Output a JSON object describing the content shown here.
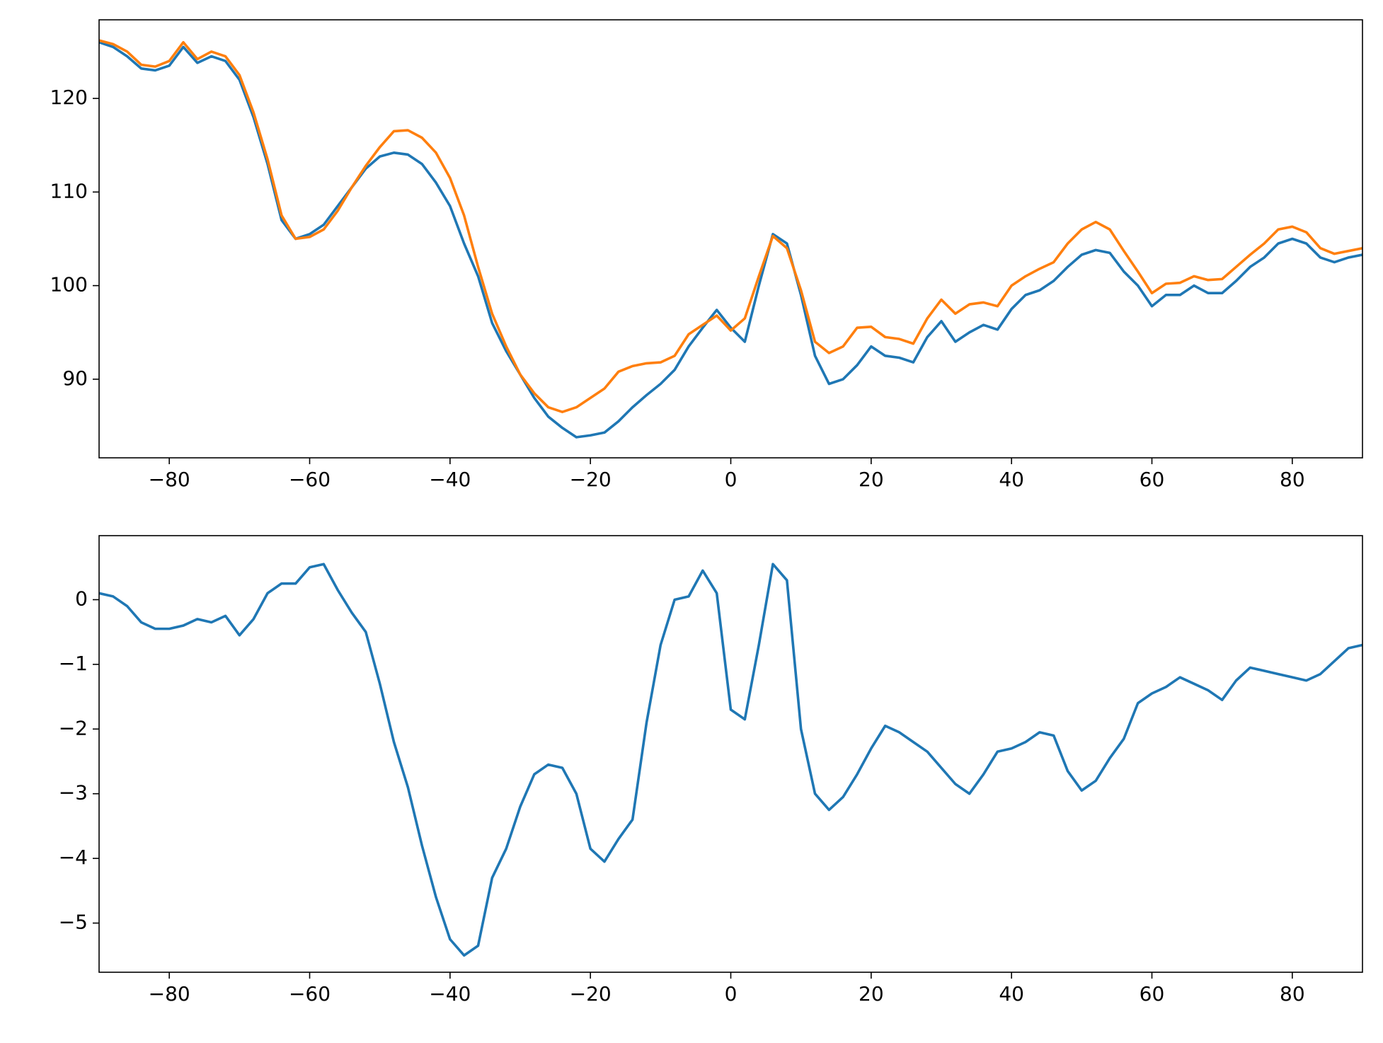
{
  "chart_data": [
    {
      "type": "line",
      "x": [
        -90,
        -88,
        -86,
        -84,
        -82,
        -80,
        -78,
        -76,
        -74,
        -72,
        -70,
        -68,
        -66,
        -64,
        -62,
        -60,
        -58,
        -56,
        -54,
        -52,
        -50,
        -48,
        -46,
        -44,
        -42,
        -40,
        -38,
        -36,
        -34,
        -32,
        -30,
        -28,
        -26,
        -24,
        -22,
        -20,
        -18,
        -16,
        -14,
        -12,
        -10,
        -8,
        -6,
        -4,
        -2,
        0,
        2,
        4,
        6,
        8,
        10,
        12,
        14,
        16,
        18,
        20,
        22,
        24,
        26,
        28,
        30,
        32,
        34,
        36,
        38,
        40,
        42,
        44,
        46,
        48,
        50,
        52,
        54,
        56,
        58,
        60,
        62,
        64,
        66,
        68,
        70,
        72,
        74,
        76,
        78,
        80,
        82,
        84,
        86,
        88,
        90
      ],
      "series": [
        {
          "color": "#1f77b4",
          "values": [
            126,
            125.5,
            124.5,
            123.2,
            123,
            123.5,
            125.5,
            123.8,
            124.5,
            124,
            122,
            118,
            113,
            107,
            105,
            105.5,
            106.5,
            108.5,
            110.5,
            112.5,
            113.8,
            114.2,
            114,
            113,
            111,
            108.5,
            104.5,
            101,
            96,
            93,
            90.5,
            88,
            86,
            84.8,
            83.8,
            84,
            84.3,
            85.5,
            87,
            88.3,
            89.5,
            91,
            93.5,
            95.5,
            97.4,
            95.5,
            94,
            100,
            105.5,
            104.5,
            99,
            92.5,
            89.5,
            90,
            91.5,
            93.5,
            92.5,
            92.3,
            91.8,
            94.5,
            96.2,
            94,
            95,
            95.8,
            95.3,
            97.5,
            99,
            99.5,
            100.5,
            102,
            103.3,
            103.8,
            103.5,
            101.5,
            100,
            97.8,
            99,
            99,
            100,
            99.2,
            99.2,
            100.5,
            102,
            103,
            104.5,
            105,
            104.5,
            103,
            102.5,
            103,
            103.3
          ]
        },
        {
          "color": "#ff7f0e",
          "values": [
            126.2,
            125.8,
            125,
            123.6,
            123.4,
            124,
            126,
            124.2,
            125,
            124.5,
            122.5,
            118.5,
            113.5,
            107.5,
            105,
            105.2,
            106,
            108,
            110.5,
            112.8,
            114.8,
            116.5,
            116.6,
            115.8,
            114.2,
            111.5,
            107.5,
            102,
            97,
            93.5,
            90.5,
            88.5,
            87,
            86.5,
            87,
            88,
            89,
            90.8,
            91.4,
            91.7,
            91.8,
            92.5,
            94.8,
            95.8,
            96.8,
            95.2,
            96.5,
            101,
            105.3,
            104,
            99.5,
            94,
            92.8,
            93.5,
            95.5,
            95.6,
            94.5,
            94.3,
            93.8,
            96.5,
            98.5,
            97,
            98,
            98.2,
            97.8,
            100,
            101,
            101.8,
            102.5,
            104.5,
            106,
            106.8,
            106,
            103.7,
            101.5,
            99.2,
            100.2,
            100.3,
            101,
            100.6,
            100.7,
            102,
            103.3,
            104.5,
            106,
            106.3,
            105.7,
            104,
            103.4,
            103.7,
            104
          ]
        }
      ],
      "xlim": [
        -90,
        90
      ],
      "xticks": [
        {
          "value": -80,
          "label": "−80"
        },
        {
          "value": -60,
          "label": "−60"
        },
        {
          "value": -40,
          "label": "−40"
        },
        {
          "value": -20,
          "label": "−20"
        },
        0,
        20,
        40,
        60,
        80
      ],
      "ylim": [
        81.6,
        128.4
      ],
      "yticks": [
        90,
        100,
        110,
        120
      ]
    },
    {
      "type": "line",
      "x": [
        -90,
        -88,
        -86,
        -84,
        -82,
        -80,
        -78,
        -76,
        -74,
        -72,
        -70,
        -68,
        -66,
        -64,
        -62,
        -60,
        -58,
        -56,
        -54,
        -52,
        -50,
        -48,
        -46,
        -44,
        -42,
        -40,
        -38,
        -36,
        -34,
        -32,
        -30,
        -28,
        -26,
        -24,
        -22,
        -20,
        -18,
        -16,
        -14,
        -12,
        -10,
        -8,
        -6,
        -4,
        -2,
        0,
        2,
        4,
        6,
        8,
        10,
        12,
        14,
        16,
        18,
        20,
        22,
        24,
        26,
        28,
        30,
        32,
        34,
        36,
        38,
        40,
        42,
        44,
        46,
        48,
        50,
        52,
        54,
        56,
        58,
        60,
        62,
        64,
        66,
        68,
        70,
        72,
        74,
        76,
        78,
        80,
        82,
        84,
        86,
        88,
        90
      ],
      "series": [
        {
          "color": "#1f77b4",
          "values": [
            0.1,
            0.05,
            -0.1,
            -0.35,
            -0.45,
            -0.45,
            -0.4,
            -0.3,
            -0.35,
            -0.25,
            -0.55,
            -0.3,
            0.1,
            0.25,
            0.25,
            0.5,
            0.55,
            0.15,
            -0.2,
            -0.5,
            -1.3,
            -2.2,
            -2.9,
            -3.8,
            -4.6,
            -5.25,
            -5.5,
            -5.35,
            -4.3,
            -3.85,
            -3.2,
            -2.7,
            -2.55,
            -2.6,
            -3.0,
            -3.85,
            -4.05,
            -3.7,
            -3.4,
            -1.9,
            -0.7,
            0.0,
            0.05,
            0.45,
            0.1,
            -1.7,
            -1.85,
            -0.7,
            0.55,
            0.3,
            -2.0,
            -3.0,
            -3.25,
            -3.05,
            -2.7,
            -2.3,
            -1.95,
            -2.05,
            -2.2,
            -2.35,
            -2.6,
            -2.85,
            -3.0,
            -2.7,
            -2.35,
            -2.3,
            -2.2,
            -2.05,
            -2.1,
            -2.65,
            -2.95,
            -2.8,
            -2.45,
            -2.15,
            -1.6,
            -1.45,
            -1.35,
            -1.2,
            -1.3,
            -1.4,
            -1.55,
            -1.25,
            -1.05,
            -1.1,
            -1.15,
            -1.2,
            -1.25,
            -1.15,
            -0.95,
            -0.75,
            -0.7
          ]
        }
      ],
      "xlim": [
        -90,
        90
      ],
      "xticks": [
        {
          "value": -80,
          "label": "−80"
        },
        {
          "value": -60,
          "label": "−60"
        },
        {
          "value": -40,
          "label": "−40"
        },
        {
          "value": -20,
          "label": "−20"
        },
        0,
        20,
        40,
        60,
        80
      ],
      "ylim": [
        -5.76,
        0.99
      ],
      "yticks": [
        {
          "value": -5,
          "label": "−5"
        },
        {
          "value": -4,
          "label": "−4"
        },
        {
          "value": -3,
          "label": "−3"
        },
        {
          "value": -2,
          "label": "−2"
        },
        {
          "value": -1,
          "label": "−1"
        },
        0
      ]
    }
  ]
}
